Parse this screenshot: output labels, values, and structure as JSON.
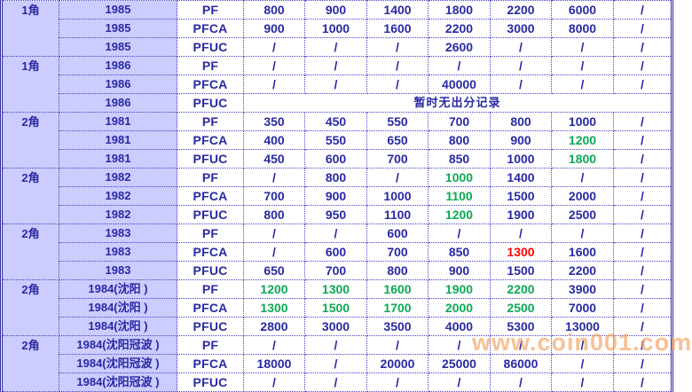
{
  "colors": {
    "text_navy": "#2929a3",
    "highlight_green": "#0caa55",
    "highlight_red": "#ff0000",
    "header_column_bg": "#ccccff",
    "border_blue": "#4343c8",
    "watermark_orange": "#f4a05c"
  },
  "watermark": "www.coin001.com",
  "table": {
    "no_record_text": "暂时无出分记录",
    "groups": [
      {
        "denom": "1角",
        "year": "1985",
        "rows": [
          {
            "grade": "PF",
            "values": [
              "800",
              "900",
              "1400",
              "1800",
              "2200",
              "6000",
              "/"
            ]
          },
          {
            "grade": "PFCA",
            "values": [
              "900",
              "1000",
              "1600",
              "2200",
              "3000",
              "8000",
              "/"
            ]
          },
          {
            "grade": "PFUC",
            "values": [
              "/",
              "/",
              "/",
              "2600",
              "/",
              "/",
              "/"
            ]
          }
        ]
      },
      {
        "denom": "1角",
        "year": "1986",
        "rows": [
          {
            "grade": "PF",
            "values": [
              "/",
              "/",
              "/",
              "/",
              "/",
              "/",
              "/"
            ]
          },
          {
            "grade": "PFCA",
            "values": [
              "/",
              "/",
              "/",
              "40000",
              "/",
              "/",
              "/"
            ]
          },
          {
            "grade": "PFUC",
            "merged": "暂时无出分记录"
          }
        ]
      },
      {
        "denom": "2角",
        "year": "1981",
        "rows": [
          {
            "grade": "PF",
            "values": [
              "350",
              "450",
              "550",
              "700",
              "800",
              "1000",
              "/"
            ]
          },
          {
            "grade": "PFCA",
            "values": [
              "400",
              "550",
              "650",
              "800",
              "900",
              "1200",
              "/"
            ],
            "green": [
              5
            ]
          },
          {
            "grade": "PFUC",
            "values": [
              "450",
              "600",
              "700",
              "850",
              "1000",
              "1800",
              "/"
            ],
            "green": [
              5
            ]
          }
        ]
      },
      {
        "denom": "2角",
        "year": "1982",
        "rows": [
          {
            "grade": "PF",
            "values": [
              "/",
              "800",
              "/",
              "1000",
              "1400",
              "/",
              "/"
            ],
            "green": [
              3
            ]
          },
          {
            "grade": "PFCA",
            "values": [
              "700",
              "900",
              "1000",
              "1100",
              "1500",
              "2000",
              "/"
            ],
            "green": [
              3
            ]
          },
          {
            "grade": "PFUC",
            "values": [
              "800",
              "950",
              "1100",
              "1200",
              "1900",
              "2500",
              "/"
            ],
            "green": [
              3
            ]
          }
        ]
      },
      {
        "denom": "2角",
        "year": "1983",
        "rows": [
          {
            "grade": "PF",
            "values": [
              "/",
              "/",
              "600",
              "/",
              "/",
              "/",
              "/"
            ]
          },
          {
            "grade": "PFCA",
            "values": [
              "/",
              "600",
              "700",
              "850",
              "1300",
              "1600",
              "/"
            ],
            "red": [
              4
            ]
          },
          {
            "grade": "PFUC",
            "values": [
              "650",
              "700",
              "800",
              "900",
              "1500",
              "2200",
              "/"
            ]
          }
        ]
      },
      {
        "denom": "2角",
        "year": "1984(沈阳 )",
        "rows": [
          {
            "grade": "PF",
            "values": [
              "1200",
              "1300",
              "1600",
              "1900",
              "2200",
              "3900",
              "/"
            ],
            "green": [
              0,
              1,
              2,
              3,
              4
            ]
          },
          {
            "grade": "PFCA",
            "values": [
              "1300",
              "1500",
              "1700",
              "2000",
              "2500",
              "7000",
              "/"
            ],
            "green": [
              0,
              1,
              2,
              3,
              4
            ]
          },
          {
            "grade": "PFUC",
            "values": [
              "2800",
              "3000",
              "3500",
              "4000",
              "5300",
              "13000",
              "/"
            ]
          }
        ]
      },
      {
        "denom": "2角",
        "year": "1984(沈阳冠波 )",
        "rows": [
          {
            "grade": "PF",
            "values": [
              "/",
              "/",
              "/",
              "/",
              "/",
              "/",
              "/"
            ]
          },
          {
            "grade": "PFCA",
            "values": [
              "18000",
              "/",
              "20000",
              "25000",
              "86000",
              "/",
              "/"
            ]
          },
          {
            "grade": "PFUC",
            "values": [
              "/",
              "/",
              "/",
              "/",
              "/",
              "/",
              "/"
            ]
          }
        ]
      }
    ]
  }
}
